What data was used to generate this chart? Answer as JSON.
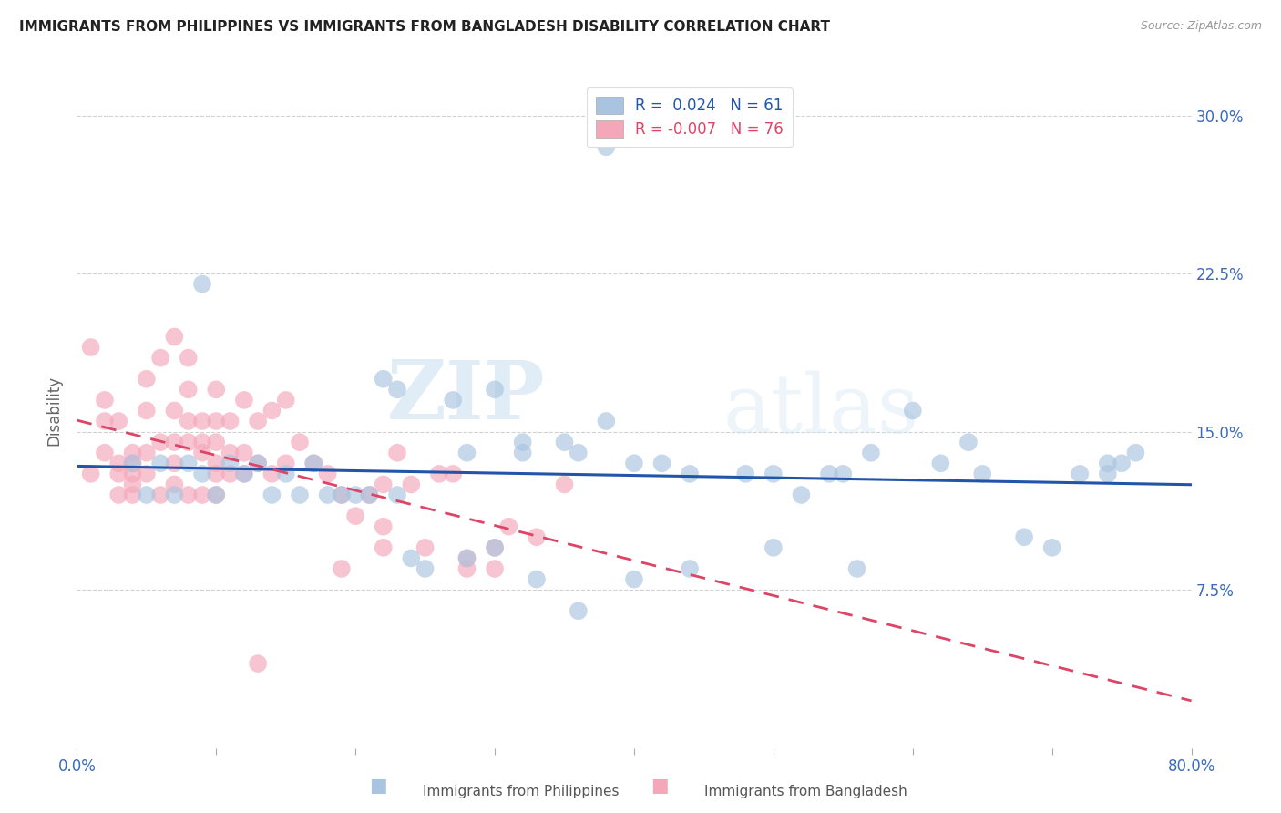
{
  "title": "IMMIGRANTS FROM PHILIPPINES VS IMMIGRANTS FROM BANGLADESH DISABILITY CORRELATION CHART",
  "source": "Source: ZipAtlas.com",
  "ylabel": "Disability",
  "yticks": [
    0.075,
    0.15,
    0.225,
    0.3
  ],
  "ytick_labels": [
    "7.5%",
    "15.0%",
    "22.5%",
    "30.0%"
  ],
  "xlim": [
    0.0,
    0.8
  ],
  "ylim": [
    0.0,
    0.32
  ],
  "r_philippines": 0.024,
  "n_philippines": 61,
  "r_bangladesh": -0.007,
  "n_bangladesh": 76,
  "color_philippines": "#a8c4e0",
  "color_bangladesh": "#f4a7b9",
  "line_color_philippines": "#2255aa",
  "line_color_bangladesh": "#dd4466",
  "watermark_zip": "ZIP",
  "watermark_atlas": "atlas",
  "philippines_x": [
    0.38,
    0.09,
    0.22,
    0.23,
    0.27,
    0.3,
    0.28,
    0.32,
    0.32,
    0.35,
    0.36,
    0.38,
    0.4,
    0.42,
    0.44,
    0.48,
    0.5,
    0.52,
    0.54,
    0.55,
    0.57,
    0.6,
    0.62,
    0.65,
    0.68,
    0.7,
    0.72,
    0.74,
    0.75,
    0.76,
    0.04,
    0.05,
    0.06,
    0.07,
    0.08,
    0.09,
    0.1,
    0.11,
    0.12,
    0.13,
    0.14,
    0.15,
    0.16,
    0.17,
    0.18,
    0.19,
    0.2,
    0.21,
    0.23,
    0.24,
    0.25,
    0.28,
    0.3,
    0.33,
    0.36,
    0.4,
    0.44,
    0.5,
    0.56,
    0.64,
    0.74
  ],
  "philippines_y": [
    0.285,
    0.22,
    0.175,
    0.17,
    0.165,
    0.17,
    0.14,
    0.145,
    0.14,
    0.145,
    0.14,
    0.155,
    0.135,
    0.135,
    0.13,
    0.13,
    0.13,
    0.12,
    0.13,
    0.13,
    0.14,
    0.16,
    0.135,
    0.13,
    0.1,
    0.095,
    0.13,
    0.13,
    0.135,
    0.14,
    0.135,
    0.12,
    0.135,
    0.12,
    0.135,
    0.13,
    0.12,
    0.135,
    0.13,
    0.135,
    0.12,
    0.13,
    0.12,
    0.135,
    0.12,
    0.12,
    0.12,
    0.12,
    0.12,
    0.09,
    0.085,
    0.09,
    0.095,
    0.08,
    0.065,
    0.08,
    0.085,
    0.095,
    0.085,
    0.145,
    0.135
  ],
  "bangladesh_x": [
    0.01,
    0.01,
    0.02,
    0.02,
    0.02,
    0.03,
    0.03,
    0.03,
    0.03,
    0.04,
    0.04,
    0.04,
    0.04,
    0.04,
    0.05,
    0.05,
    0.05,
    0.05,
    0.06,
    0.06,
    0.06,
    0.07,
    0.07,
    0.07,
    0.07,
    0.07,
    0.08,
    0.08,
    0.08,
    0.08,
    0.08,
    0.09,
    0.09,
    0.09,
    0.09,
    0.1,
    0.1,
    0.1,
    0.1,
    0.1,
    0.1,
    0.11,
    0.11,
    0.11,
    0.12,
    0.12,
    0.12,
    0.13,
    0.13,
    0.14,
    0.14,
    0.15,
    0.15,
    0.16,
    0.17,
    0.18,
    0.19,
    0.2,
    0.21,
    0.22,
    0.22,
    0.23,
    0.24,
    0.26,
    0.27,
    0.28,
    0.3,
    0.31,
    0.33,
    0.35,
    0.19,
    0.22,
    0.25,
    0.28,
    0.3,
    0.13
  ],
  "bangladesh_y": [
    0.13,
    0.19,
    0.14,
    0.155,
    0.165,
    0.12,
    0.13,
    0.135,
    0.155,
    0.14,
    0.125,
    0.13,
    0.135,
    0.12,
    0.16,
    0.175,
    0.14,
    0.13,
    0.185,
    0.145,
    0.12,
    0.195,
    0.16,
    0.145,
    0.135,
    0.125,
    0.185,
    0.17,
    0.155,
    0.145,
    0.12,
    0.155,
    0.145,
    0.14,
    0.12,
    0.17,
    0.155,
    0.145,
    0.135,
    0.13,
    0.12,
    0.155,
    0.14,
    0.13,
    0.165,
    0.14,
    0.13,
    0.155,
    0.135,
    0.16,
    0.13,
    0.165,
    0.135,
    0.145,
    0.135,
    0.13,
    0.12,
    0.11,
    0.12,
    0.125,
    0.105,
    0.14,
    0.125,
    0.13,
    0.13,
    0.09,
    0.095,
    0.105,
    0.1,
    0.125,
    0.085,
    0.095,
    0.095,
    0.085,
    0.085,
    0.04
  ]
}
